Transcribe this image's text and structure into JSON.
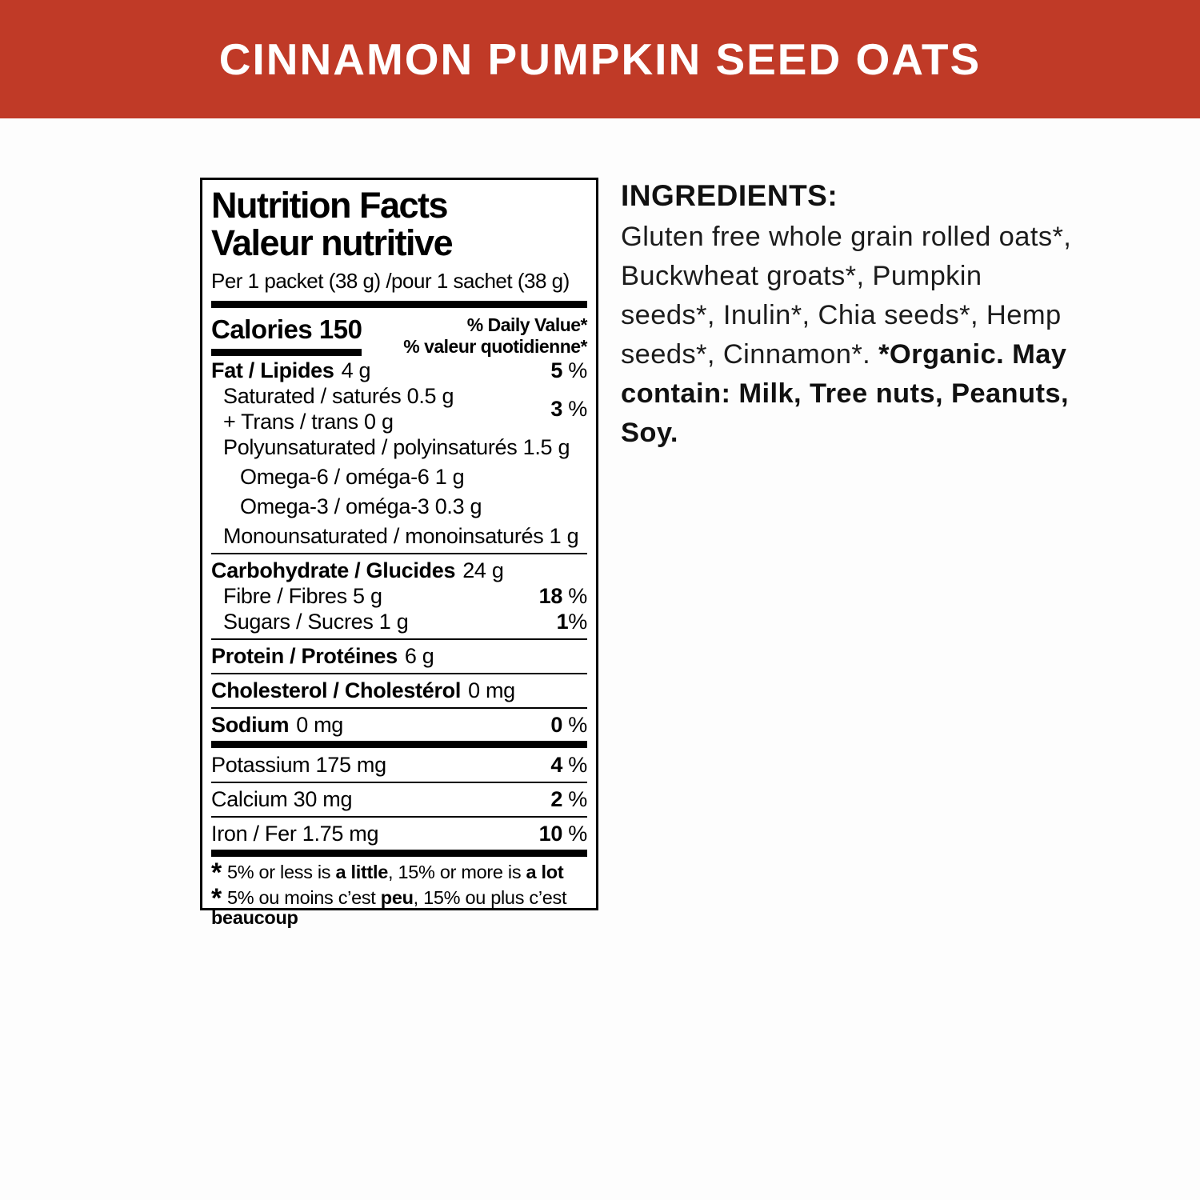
{
  "banner": {
    "title": "CINNAMON PUMPKIN SEED OATS",
    "bg_color": "#C03A27",
    "text_color": "#FFFFFF"
  },
  "label": {
    "title_en": "Nutrition Facts",
    "title_fr": "Valeur nutritive",
    "serving": "Per 1 packet (38 g) /pour 1 sachet (38 g)",
    "calories_label": "Calories",
    "calories_value": "150",
    "dv_en": "% Daily Value*",
    "dv_fr": "% valeur quotidienne*",
    "pct_sign": "%",
    "rows": {
      "fat": {
        "bold": "Fat / Lipides",
        "value": "4 g",
        "pct": "5"
      },
      "saturated": {
        "text": "Saturated / saturés  0.5 g"
      },
      "trans": {
        "text": "+ Trans / trans  0 g",
        "pct": "3"
      },
      "poly": {
        "text": "Polyunsaturated / polyinsaturés  1.5 g"
      },
      "omega6": {
        "text": "Omega-6 / oméga-6  1 g"
      },
      "omega3": {
        "text": "Omega-3 / oméga-3  0.3 g"
      },
      "mono": {
        "text": "Monounsaturated / monoinsaturés  1 g"
      },
      "carb": {
        "bold": "Carbohydrate / Glucides",
        "value": "24 g"
      },
      "fibre": {
        "text": "Fibre / Fibres  5 g",
        "pct": "18"
      },
      "sugars": {
        "text": "Sugars / Sucres  1 g",
        "pct": "1"
      },
      "protein": {
        "bold": "Protein / Protéines",
        "value": "6 g"
      },
      "cholesterol": {
        "bold": "Cholesterol / Cholestérol",
        "value": "0 mg"
      },
      "sodium": {
        "bold": "Sodium",
        "value": "0 mg",
        "pct": "0"
      },
      "potassium": {
        "text": "Potassium 175 mg",
        "pct": "4"
      },
      "calcium": {
        "text": "Calcium 30 mg",
        "pct": "2"
      },
      "iron": {
        "text": "Iron / Fer 1.75 mg",
        "pct": "10"
      }
    },
    "footnote_en": {
      "star": "*",
      "pre": "5% or less is ",
      "b1": "a little",
      "mid": ", 15% or more is ",
      "b2": "a lot"
    },
    "footnote_fr": {
      "star": "*",
      "pre": "5% ou moins c’est ",
      "b1": "peu",
      "mid": ", 15% ou plus c’est ",
      "b2": "beaucoup"
    }
  },
  "ingredients": {
    "heading": "INGREDIENTS:",
    "body_regular": "Gluten free whole grain rolled oats*, Buckwheat groats*, Pumpkin seeds*, Inulin*, Chia seeds*, Hemp seeds*, Cinnamon*. ",
    "body_bold": "*Organic. May contain: Milk, Tree nuts, Peanuts, Soy."
  }
}
